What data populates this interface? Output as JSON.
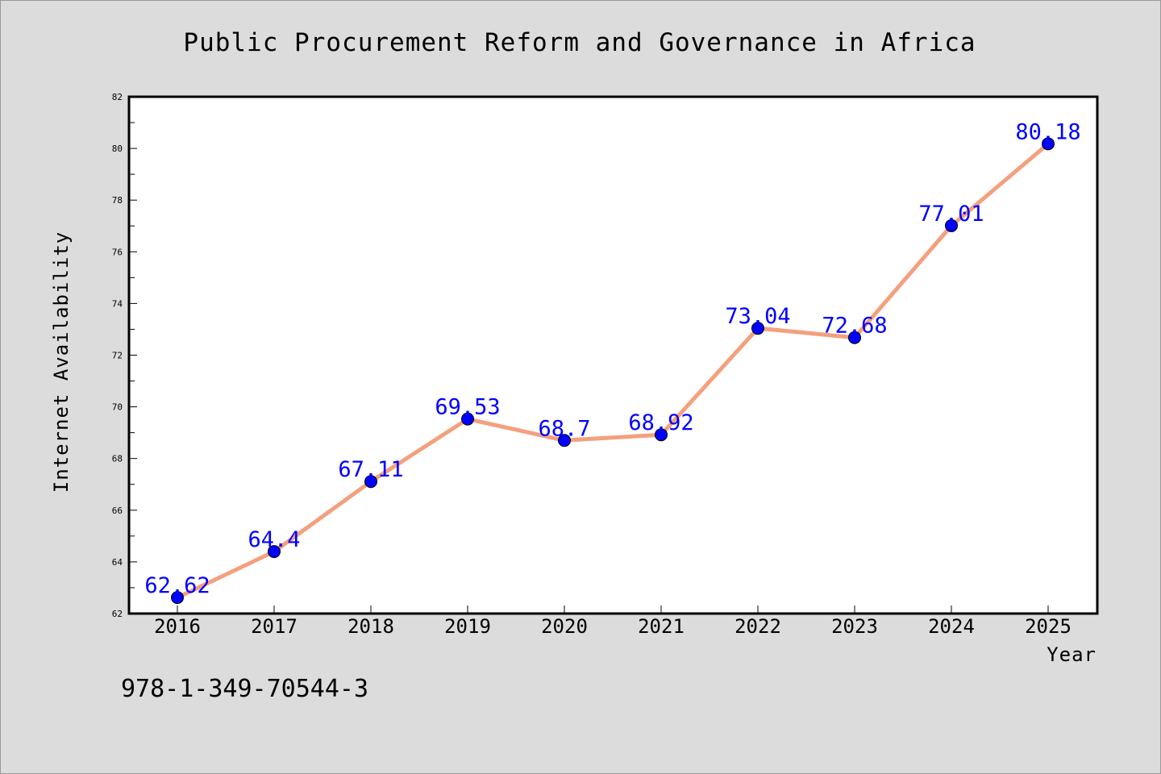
{
  "chart_data": {
    "type": "line",
    "title": "Public Procurement Reform and Governance in Africa",
    "xlabel": "Year",
    "ylabel": "Internet Availability",
    "categories": [
      "2016",
      "2017",
      "2018",
      "2019",
      "2020",
      "2021",
      "2022",
      "2023",
      "2024",
      "2025"
    ],
    "series": [
      {
        "values": [
          62.62,
          64.4,
          67.11,
          69.53,
          68.7,
          68.92,
          73.04,
          72.68,
          77.01,
          80.18
        ],
        "labels": [
          "62.62",
          "64.4",
          "67.11",
          "69.53",
          "68.7",
          "68.92",
          "73.04",
          "72.68",
          "77.01",
          "80.18"
        ],
        "line_color": "#f4a07e",
        "marker_color": "#0000ff"
      }
    ],
    "ylim": [
      62,
      82
    ],
    "yticks": [
      "62",
      "64",
      "66",
      "68",
      "70",
      "72",
      "74",
      "76",
      "78",
      "80",
      "82"
    ],
    "grid": false,
    "legend": "none",
    "background": "#dcdcdc",
    "plot_background": "#ffffff"
  },
  "footer": {
    "code": "978-1-349-70544-3"
  }
}
